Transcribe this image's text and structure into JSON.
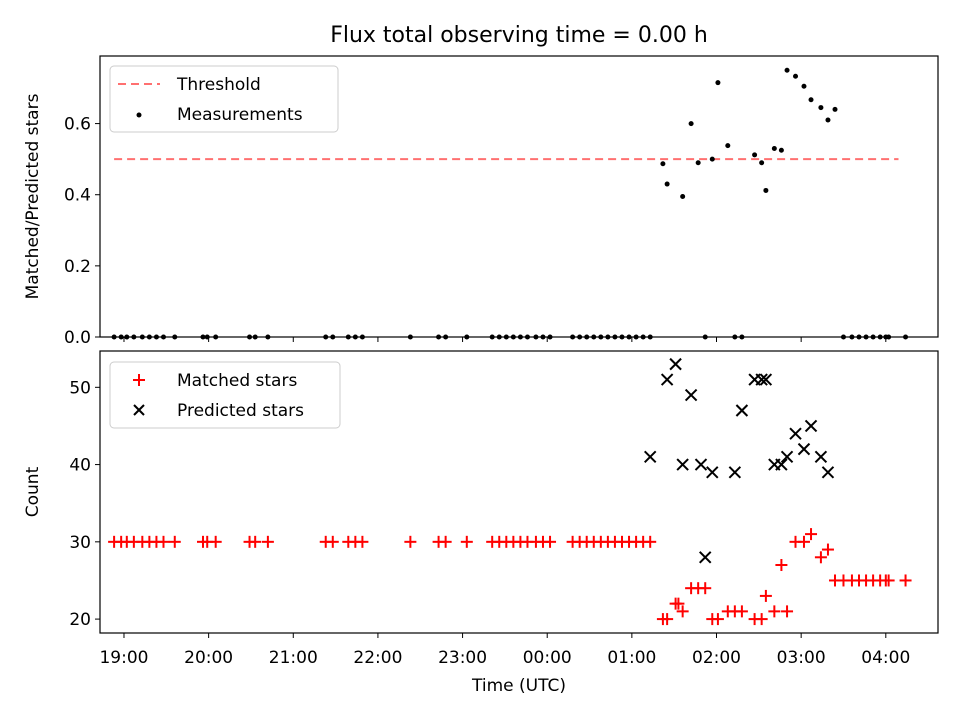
{
  "title": "Flux total observing time = 0.00 h",
  "chart_data": [
    {
      "type": "line+scatter",
      "title": "Flux total observing time = 0.00 h",
      "xlabel": "",
      "ylabel": "Matched/Predicted stars",
      "xlim": [
        "18:43",
        "04:37"
      ],
      "ylim": [
        0,
        0.79
      ],
      "yticks": [
        0.0,
        0.2,
        0.4,
        0.6
      ],
      "ytick_labels": [
        "0.0",
        "0.2",
        "0.4",
        "0.6"
      ],
      "legend_position": "upper-left",
      "legend": [
        "Threshold",
        "Measurements"
      ],
      "threshold": {
        "name": "Threshold",
        "value": 0.5,
        "x": [
          "18:53",
          "04:09"
        ],
        "color": "#ff7070",
        "style": "dashed"
      },
      "series": [
        {
          "name": "Measurements",
          "color": "#000000",
          "marker": "dot",
          "x": [
            "18:53",
            "18:58",
            "19:02",
            "19:07",
            "19:13",
            "19:18",
            "19:23",
            "19:28",
            "19:36",
            "19:56",
            "19:59",
            "20:05",
            "20:29",
            "20:33",
            "20:42",
            "21:23",
            "21:28",
            "21:39",
            "21:44",
            "21:49",
            "22:23",
            "22:43",
            "22:48",
            "23:03",
            "23:21",
            "23:26",
            "23:31",
            "23:36",
            "23:41",
            "23:46",
            "23:52",
            "23:57",
            "00:02",
            "00:18",
            "00:23",
            "00:28",
            "00:33",
            "00:38",
            "00:43",
            "00:48",
            "00:53",
            "00:58",
            "01:03",
            "01:08",
            "01:13",
            "01:22",
            "01:25",
            "01:36",
            "01:42",
            "01:47",
            "01:52",
            "01:57",
            "02:01",
            "02:08",
            "02:13",
            "02:18",
            "02:27",
            "02:32",
            "02:35",
            "02:41",
            "02:46",
            "02:50",
            "02:56",
            "03:02",
            "03:07",
            "03:14",
            "03:19",
            "03:24",
            "03:30",
            "03:36",
            "03:41",
            "03:46",
            "03:51",
            "03:56",
            "04:00",
            "04:02",
            "04:14"
          ],
          "y": [
            0,
            0,
            0,
            0,
            0,
            0,
            0,
            0,
            0,
            0,
            0,
            0,
            0,
            0,
            0,
            0,
            0,
            0,
            0,
            0,
            0,
            0,
            0,
            0,
            0,
            0,
            0,
            0,
            0,
            0,
            0,
            0,
            0,
            0,
            0,
            0,
            0,
            0,
            0,
            0,
            0,
            0,
            0,
            0,
            0,
            0.487,
            0.43,
            0.395,
            0.6,
            0.49,
            0,
            0.5,
            0.715,
            0.538,
            0,
            0,
            0.512,
            0.49,
            0.412,
            0.53,
            0.525,
            0.75,
            0.733,
            0.705,
            0.667,
            0.645,
            0.61,
            0.64,
            0,
            0,
            0,
            0,
            0,
            0,
            0,
            0,
            0
          ]
        }
      ]
    },
    {
      "type": "scatter",
      "title": "",
      "xlabel": "Time (UTC)",
      "ylabel": "Count",
      "xlim": [
        "18:43",
        "04:37"
      ],
      "ylim": [
        18.2,
        54.7
      ],
      "yticks": [
        20,
        30,
        40,
        50
      ],
      "xtick_labels": [
        "19:00",
        "20:00",
        "21:00",
        "22:00",
        "23:00",
        "00:00",
        "01:00",
        "02:00",
        "03:00",
        "04:00"
      ],
      "legend_position": "upper-left",
      "legend": [
        "Matched stars",
        "Predicted stars"
      ],
      "series": [
        {
          "name": "Matched stars",
          "color": "#ff0000",
          "marker": "plus",
          "x": [
            "18:53",
            "18:58",
            "19:02",
            "19:07",
            "19:13",
            "19:18",
            "19:23",
            "19:28",
            "19:36",
            "19:56",
            "19:59",
            "20:05",
            "20:29",
            "20:33",
            "20:42",
            "21:23",
            "21:28",
            "21:39",
            "21:44",
            "21:49",
            "22:23",
            "22:43",
            "22:48",
            "23:03",
            "23:21",
            "23:26",
            "23:31",
            "23:36",
            "23:41",
            "23:46",
            "23:52",
            "23:57",
            "00:02",
            "00:18",
            "00:23",
            "00:28",
            "00:33",
            "00:38",
            "00:43",
            "00:48",
            "00:53",
            "00:58",
            "01:03",
            "01:08",
            "01:13",
            "01:22",
            "01:25",
            "01:31",
            "01:33",
            "01:36",
            "01:42",
            "01:47",
            "01:52",
            "01:57",
            "02:01",
            "02:08",
            "02:13",
            "02:18",
            "02:27",
            "02:32",
            "02:35",
            "02:41",
            "02:46",
            "02:50",
            "02:56",
            "03:02",
            "03:07",
            "03:14",
            "03:19",
            "03:24",
            "03:30",
            "03:36",
            "03:41",
            "03:46",
            "03:51",
            "03:56",
            "04:00",
            "04:02",
            "04:14"
          ],
          "y": [
            30,
            30,
            30,
            30,
            30,
            30,
            30,
            30,
            30,
            30,
            30,
            30,
            30,
            30,
            30,
            30,
            30,
            30,
            30,
            30,
            30,
            30,
            30,
            30,
            30,
            30,
            30,
            30,
            30,
            30,
            30,
            30,
            30,
            30,
            30,
            30,
            30,
            30,
            30,
            30,
            30,
            30,
            30,
            30,
            30,
            20,
            20,
            22,
            22,
            21,
            24,
            24,
            24,
            20,
            20,
            21,
            21,
            21,
            20,
            20,
            23,
            21,
            27,
            21,
            30,
            30,
            31,
            28,
            29,
            25,
            25,
            25,
            25,
            25,
            25,
            25,
            25,
            25,
            25
          ]
        },
        {
          "name": "Predicted stars",
          "color": "#000000",
          "marker": "x",
          "x": [
            "01:13",
            "01:25",
            "01:31",
            "01:36",
            "01:42",
            "01:49",
            "01:52",
            "01:57",
            "02:13",
            "02:18",
            "02:27",
            "02:32",
            "02:35",
            "02:41",
            "02:46",
            "02:50",
            "02:56",
            "03:02",
            "03:07",
            "03:14",
            "03:19"
          ],
          "y": [
            41,
            51,
            53,
            40,
            49,
            40,
            28,
            39,
            39,
            47,
            51,
            51,
            51,
            40,
            40,
            41,
            44,
            42,
            45,
            41,
            39
          ]
        }
      ]
    }
  ]
}
